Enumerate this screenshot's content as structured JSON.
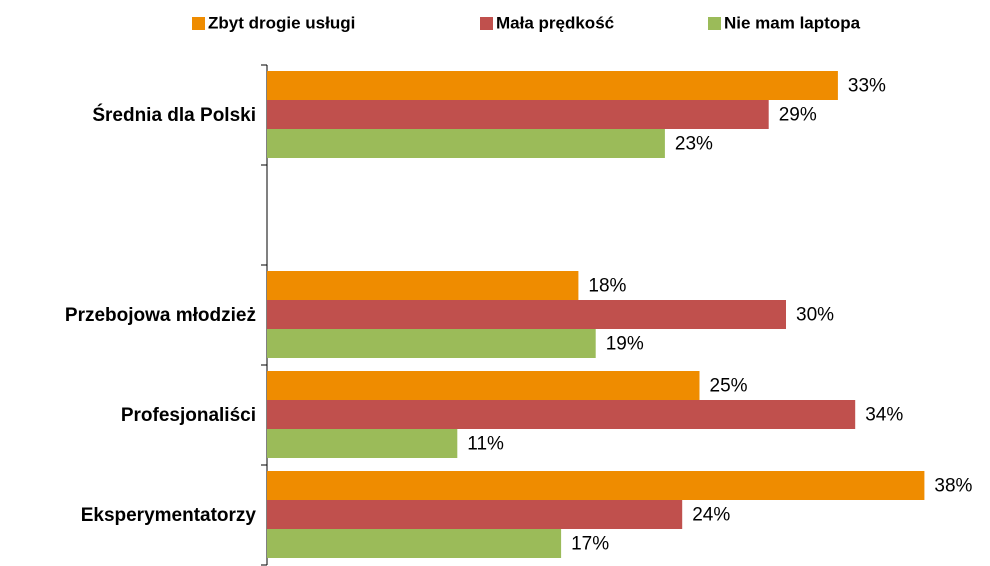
{
  "chart_data": {
    "type": "bar",
    "orientation": "horizontal",
    "categories": [
      "Średnia dla Polski",
      null,
      "Przebojowa młodzież",
      "Profesjonaliści",
      "Eksperymentatorzy"
    ],
    "series": [
      {
        "name": "Zbyt drogie usługi",
        "color": "#ef8c00",
        "values": [
          33,
          null,
          18,
          25,
          38
        ],
        "value_labels": [
          "33%",
          null,
          "18%",
          "25%",
          "38%"
        ]
      },
      {
        "name": "Mała prędkość",
        "color": "#c0504d",
        "values": [
          29,
          null,
          30,
          34,
          24
        ],
        "value_labels": [
          "29%",
          null,
          "30%",
          "34%",
          "24%"
        ]
      },
      {
        "name": "Nie mam laptopa",
        "color": "#9bbb59",
        "values": [
          23,
          null,
          19,
          11,
          17
        ],
        "value_labels": [
          "23%",
          null,
          "19%",
          "11%",
          "17%"
        ]
      }
    ],
    "legend": "top"
  }
}
